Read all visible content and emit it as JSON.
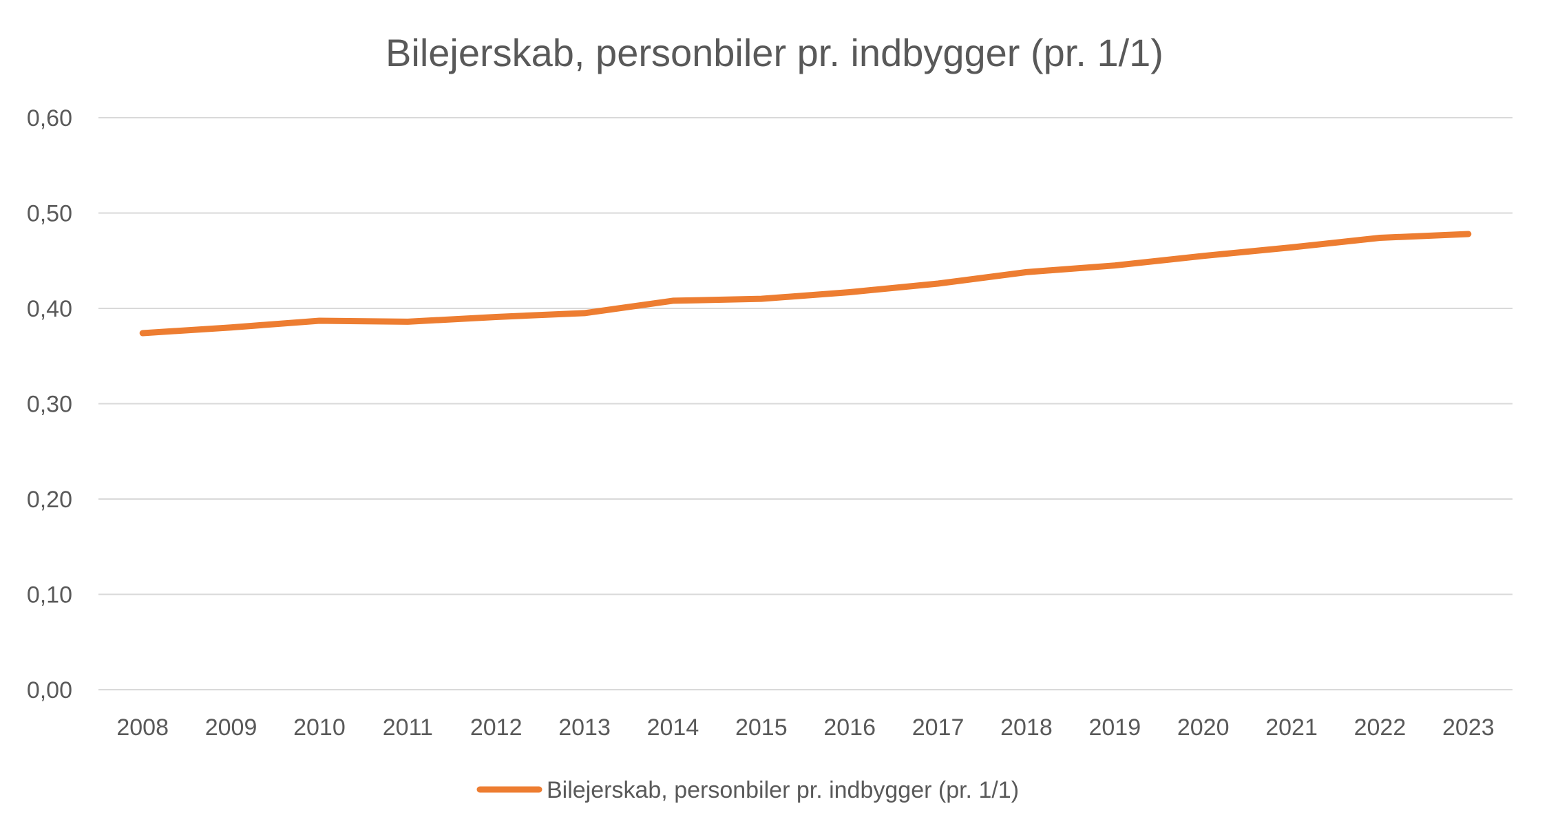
{
  "chart_data": {
    "type": "line",
    "title": "Bilejerskab, personbiler pr. indbygger (pr. 1/1)",
    "xlabel": "",
    "ylabel": "",
    "categories": [
      "2008",
      "2009",
      "2010",
      "2011",
      "2012",
      "2013",
      "2014",
      "2015",
      "2016",
      "2017",
      "2018",
      "2019",
      "2020",
      "2021",
      "2022",
      "2023"
    ],
    "series": [
      {
        "name": "Bilejerskab, personbiler pr. indbygger (pr. 1/1)",
        "values": [
          0.374,
          0.38,
          0.387,
          0.386,
          0.391,
          0.395,
          0.408,
          0.41,
          0.417,
          0.426,
          0.438,
          0.445,
          0.455,
          0.464,
          0.474,
          0.478
        ],
        "color": "#ED7D31"
      }
    ],
    "ylim": [
      0,
      0.6
    ],
    "yticks": [
      "0,00",
      "0,10",
      "0,20",
      "0,30",
      "0,40",
      "0,50",
      "0,60"
    ],
    "grid": true,
    "legend_position": "bottom",
    "gridline_color": "#D9D9D9"
  }
}
